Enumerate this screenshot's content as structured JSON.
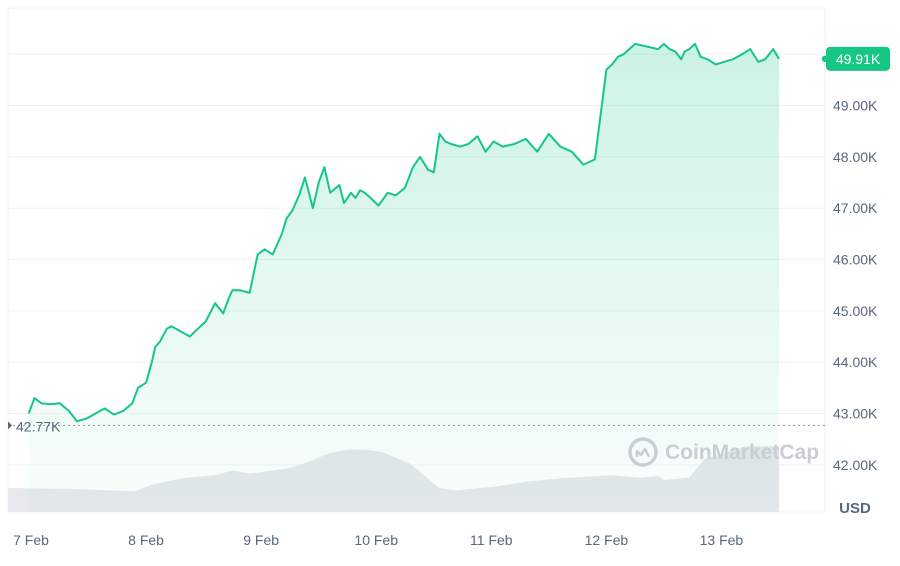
{
  "chart_data": {
    "type": "area",
    "title": "",
    "xlabel": "",
    "ylabel": "",
    "unit_label": "USD",
    "x_tick_labels": [
      "7 Feb",
      "8 Feb",
      "9 Feb",
      "10 Feb",
      "11 Feb",
      "12 Feb",
      "13 Feb"
    ],
    "y_tick_labels": [
      "42.00K",
      "43.00K",
      "44.00K",
      "45.00K",
      "46.00K",
      "47.00K",
      "48.00K",
      "49.00K"
    ],
    "y_ticks": [
      42000,
      43000,
      44000,
      45000,
      46000,
      47000,
      48000,
      49000
    ],
    "ylim": [
      41900,
      50900
    ],
    "xlim": [
      6.8,
      13.9
    ],
    "grid": true,
    "current_price": {
      "value": 49910,
      "label": "49.91K"
    },
    "baseline_price": {
      "value": 42770,
      "label": "42.77K"
    },
    "watermark": "CoinMarketCap",
    "colors": {
      "line": "#16c784",
      "badge": "#16c784",
      "volume": "#e6e8ec",
      "grid": "#eff2f5",
      "axis_text": "#58667e"
    },
    "series": [
      {
        "x": [
          6.98,
          7.03,
          7.09,
          7.17,
          7.25,
          7.33,
          7.4,
          7.48,
          7.56,
          7.64,
          7.72,
          7.8,
          7.88,
          7.93,
          8.0,
          8.05,
          8.08,
          8.12,
          8.18,
          8.22,
          8.3,
          8.38,
          8.45,
          8.52,
          8.6,
          8.67,
          8.72,
          8.75,
          8.82,
          8.9,
          8.97,
          9.03,
          9.1,
          9.18,
          9.22,
          9.27,
          9.33,
          9.38,
          9.45,
          9.5,
          9.55,
          9.6,
          9.65,
          9.68,
          9.72,
          9.78,
          9.82,
          9.86,
          9.9,
          9.95,
          10.02,
          10.1,
          10.17,
          10.25,
          10.32,
          10.38,
          10.45,
          10.5,
          10.55,
          10.6,
          10.65,
          10.73,
          10.8,
          10.88,
          10.95,
          11.02,
          11.1,
          11.2,
          11.3,
          11.4,
          11.5,
          11.6,
          11.7,
          11.8,
          11.9,
          12.0,
          12.05,
          12.1,
          12.15,
          12.25,
          12.35,
          12.45,
          12.5,
          12.55,
          12.6,
          12.65,
          12.68,
          12.72,
          12.77,
          12.82,
          12.88,
          12.95,
          13.02,
          13.1,
          13.18,
          13.25,
          13.32,
          13.38,
          13.45,
          13.5
        ],
        "values": [
          43000,
          43300,
          43200,
          43180,
          43200,
          43050,
          42850,
          42900,
          43000,
          43100,
          42980,
          43050,
          43200,
          43500,
          43600,
          44000,
          44300,
          44400,
          44650,
          44700,
          44600,
          44500,
          44650,
          44800,
          45150,
          44950,
          45250,
          45400,
          45400,
          45350,
          46100,
          46200,
          46100,
          46500,
          46800,
          46950,
          47250,
          47600,
          47000,
          47500,
          47800,
          47300,
          47400,
          47450,
          47100,
          47300,
          47200,
          47350,
          47300,
          47200,
          47050,
          47300,
          47250,
          47400,
          47800,
          48000,
          47750,
          47700,
          48450,
          48300,
          48250,
          48200,
          48250,
          48400,
          48100,
          48300,
          48200,
          48250,
          48350,
          48100,
          48450,
          48200,
          48100,
          47850,
          47950,
          49700,
          49800,
          49950,
          50000,
          50200,
          50150,
          50100,
          50200,
          50100,
          50050,
          49900,
          50050,
          50100,
          50200,
          49950,
          49900,
          49800,
          49850,
          49900,
          50000,
          50100,
          49850,
          49900,
          50100,
          49910
        ]
      }
    ],
    "volume": {
      "x": [
        6.8,
        7.3,
        7.9,
        8.05,
        8.3,
        8.6,
        8.75,
        8.9,
        9.25,
        9.4,
        9.6,
        9.75,
        9.9,
        10.05,
        10.3,
        10.55,
        10.7,
        10.9,
        11.05,
        11.3,
        11.6,
        12.05,
        12.3,
        12.45,
        12.5,
        12.72,
        12.85,
        13.2,
        13.5
      ],
      "values": [
        0.3,
        0.29,
        0.26,
        0.34,
        0.42,
        0.46,
        0.52,
        0.48,
        0.55,
        0.62,
        0.74,
        0.78,
        0.78,
        0.75,
        0.6,
        0.3,
        0.27,
        0.3,
        0.32,
        0.38,
        0.42,
        0.46,
        0.43,
        0.45,
        0.4,
        0.43,
        0.66,
        0.82,
        0.82
      ]
    }
  }
}
